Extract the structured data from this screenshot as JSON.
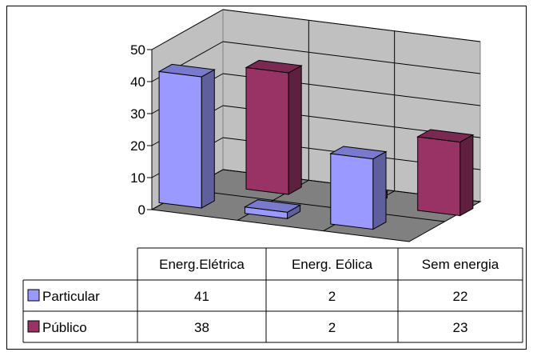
{
  "chart_data": {
    "type": "bar",
    "style": "3d-clustered-column-with-data-table",
    "categories": [
      "Energ.Elétrica",
      "Energ. Eólica",
      "Sem energia"
    ],
    "series": [
      {
        "name": "Particular",
        "values": [
          41,
          2,
          22
        ],
        "color": "#9999ff"
      },
      {
        "name": "Público",
        "values": [
          38,
          2,
          23
        ],
        "color": "#993366"
      }
    ],
    "yticks": [
      "0",
      "10",
      "20",
      "30",
      "40",
      "50"
    ],
    "ylim": [
      0,
      50
    ],
    "grid": true,
    "legend": "data-table",
    "title": "",
    "xlabel": "",
    "ylabel": ""
  }
}
